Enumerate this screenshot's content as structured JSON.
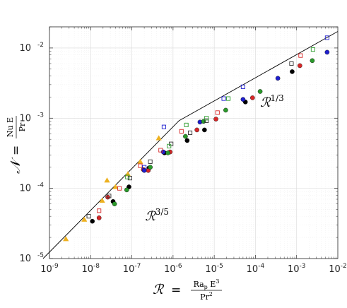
{
  "chart_data": {
    "type": "scatter",
    "x_scale": "log",
    "y_scale": "log",
    "xlim": [
      1e-09,
      0.01
    ],
    "ylim": [
      1e-05,
      0.02
    ],
    "grid": true,
    "x_ticks": [
      {
        "base": "10",
        "exp": "-9",
        "value": 1e-09
      },
      {
        "base": "10",
        "exp": "-8",
        "value": 1e-08
      },
      {
        "base": "10",
        "exp": "-7",
        "value": 1e-07
      },
      {
        "base": "10",
        "exp": "-6",
        "value": 1e-06
      },
      {
        "base": "10",
        "exp": "-5",
        "value": 1e-05
      },
      {
        "base": "10",
        "exp": "-4",
        "value": 0.0001
      },
      {
        "base": "10",
        "exp": "-3",
        "value": 0.001
      },
      {
        "base": "10",
        "exp": "-2",
        "value": 0.01
      }
    ],
    "y_ticks": [
      {
        "base": "10",
        "exp": "-5",
        "value": 1e-05
      },
      {
        "base": "10",
        "exp": "-4",
        "value": 0.0001
      },
      {
        "base": "10",
        "exp": "-3",
        "value": 0.001
      },
      {
        "base": "10",
        "exp": "-2",
        "value": 0.01
      }
    ],
    "xlabel": {
      "symbol": "ℛ",
      "equals": "=",
      "numerator": "Ra",
      "numerator_sub": "p",
      "numerator_rest": " E",
      "numerator_sup": "3",
      "denominator": "Pr",
      "denominator_sup": "2"
    },
    "ylabel": {
      "symbol": "𝒩",
      "equals": "=",
      "numerator": "Nu E",
      "denominator": "Pr"
    },
    "annotations": [
      {
        "base": "ℛ",
        "exp": "3/5",
        "at": [
          2.1e-07,
          3.5e-05
        ]
      },
      {
        "base": "ℛ",
        "exp": "1/3",
        "at": [
          0.00013,
          0.00145
        ]
      }
    ],
    "fit_lines": [
      {
        "name": "",
        "points": [
          [
            7e-10,
            1e-05
          ],
          [
            1.4e-06,
            0.00092
          ]
        ]
      },
      {
        "name": "",
        "points": [
          [
            1.4e-06,
            0.00092
          ],
          [
            0.01,
            0.0172
          ]
        ]
      }
    ],
    "series": [
      {
        "marker": "triangle",
        "filled": true,
        "color": "#EDB120",
        "points": [
          [
            2.5e-09,
            1.9e-05
          ],
          [
            7e-09,
            3.6e-05
          ],
          [
            1.9e-08,
            6.7e-05
          ],
          [
            4e-08,
            0.000105
          ],
          [
            8e-08,
            0.00016
          ],
          [
            1.6e-07,
            0.00024
          ],
          [
            2.5e-08,
            0.00013
          ],
          [
            4.5e-07,
            0.00052
          ]
        ]
      },
      {
        "marker": "circle",
        "filled": true,
        "color": "#000000",
        "points": [
          [
            1.1e-08,
            3.4e-05
          ],
          [
            3.5e-08,
            6.5e-05
          ],
          [
            8.5e-08,
            0.000105
          ],
          [
            2.6e-07,
            0.000195
          ],
          [
            6.2e-07,
            0.00032
          ],
          [
            2.2e-06,
            0.00048
          ],
          [
            5.8e-06,
            0.00068
          ],
          [
            5.7e-05,
            0.0017
          ],
          [
            0.00078,
            0.0046
          ]
        ]
      },
      {
        "marker": "circle",
        "filled": true,
        "color": "#D62728",
        "points": [
          [
            1.6e-08,
            3.8e-05
          ],
          [
            2.6e-08,
            7.5e-05
          ],
          [
            1.9e-07,
            0.000185
          ],
          [
            2.5e-07,
            0.00018
          ],
          [
            8.5e-07,
            0.00033
          ],
          [
            3.8e-06,
            0.00068
          ],
          [
            1.1e-05,
            0.00097
          ],
          [
            8.5e-05,
            0.00195
          ],
          [
            0.0012,
            0.0056
          ]
        ]
      },
      {
        "marker": "circle",
        "filled": true,
        "color": "#1F1FCF",
        "points": [
          [
            2e-07,
            0.00018
          ],
          [
            5.8e-07,
            0.00033
          ],
          [
            4.5e-06,
            0.00088
          ],
          [
            5e-05,
            0.00185
          ],
          [
            0.00035,
            0.0037
          ],
          [
            0.0055,
            0.0087
          ]
        ]
      },
      {
        "marker": "circle",
        "filled": true,
        "color": "#2A9A2A",
        "points": [
          [
            3.8e-08,
            6e-05
          ],
          [
            7.5e-08,
            9.5e-05
          ],
          [
            2.8e-07,
            0.0002
          ],
          [
            7.5e-07,
            0.00032
          ],
          [
            2e-06,
            0.00055
          ],
          [
            5.5e-06,
            0.0009
          ],
          [
            1.9e-05,
            0.0013
          ],
          [
            0.00013,
            0.0024
          ],
          [
            0.0024,
            0.0066
          ]
        ]
      },
      {
        "marker": "square",
        "filled": false,
        "color": "#333333",
        "points": [
          [
            9e-09,
            4e-05
          ],
          [
            2.8e-08,
            7.8e-05
          ],
          [
            9e-08,
            0.00014
          ],
          [
            2.8e-07,
            0.00024
          ],
          [
            9e-07,
            0.00043
          ],
          [
            2.6e-06,
            0.00062
          ],
          [
            6.5e-06,
            0.00092
          ],
          [
            0.00075,
            0.006
          ]
        ]
      },
      {
        "marker": "square",
        "filled": false,
        "color": "#D62728",
        "points": [
          [
            1.6e-08,
            4.8e-05
          ],
          [
            5e-08,
            0.0001
          ],
          [
            1.6e-07,
            0.00021
          ],
          [
            5e-07,
            0.00035
          ],
          [
            1.6e-06,
            0.00065
          ],
          [
            1.2e-05,
            0.0012
          ],
          [
            0.00125,
            0.0078
          ]
        ]
      },
      {
        "marker": "square",
        "filled": false,
        "color": "#1F1FCF",
        "points": [
          [
            2e-07,
            0.0002
          ],
          [
            6e-07,
            0.00075
          ],
          [
            1.7e-05,
            0.0019
          ],
          [
            5e-05,
            0.0028
          ],
          [
            0.0055,
            0.014
          ]
        ]
      },
      {
        "marker": "square",
        "filled": false,
        "color": "#2A9A2A",
        "points": [
          [
            7.8e-08,
            0.000145
          ],
          [
            8e-07,
            0.0004
          ],
          [
            2.1e-06,
            0.0008
          ],
          [
            6.5e-06,
            0.001
          ],
          [
            2.2e-05,
            0.0019
          ],
          [
            0.0025,
            0.0095
          ]
        ]
      }
    ]
  }
}
